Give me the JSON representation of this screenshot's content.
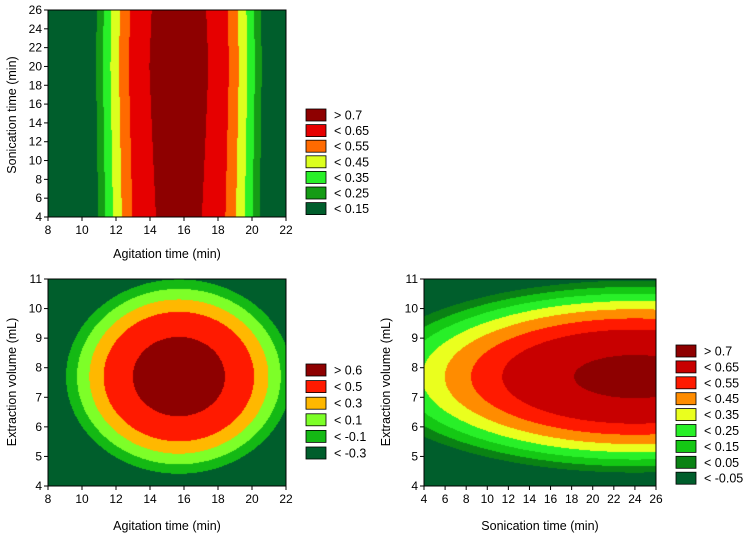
{
  "chart_data": [
    {
      "type": "contour",
      "xlabel": "Agitation time (min)",
      "ylabel": "Sonication time (min)",
      "xlim": [
        8,
        22
      ],
      "ylim": [
        4,
        26
      ],
      "xticks": [
        8,
        10,
        12,
        14,
        16,
        18,
        20,
        22
      ],
      "yticks": [
        4,
        6,
        8,
        10,
        12,
        14,
        16,
        18,
        20,
        22,
        24,
        26
      ],
      "surface": {
        "form": "x_quadratic_y_linear",
        "peak": 0.78,
        "x_center": 15.7,
        "x_coef": 0.0265,
        "y_ref": 20,
        "y_coef": 0.002
      },
      "legend": [
        {
          "label": "> 0.7",
          "color": "#8e0000"
        },
        {
          "label": "< 0.65",
          "color": "#e60000"
        },
        {
          "label": "< 0.55",
          "color": "#ff6a00"
        },
        {
          "label": "< 0.45",
          "color": "#dcff1e"
        },
        {
          "label": "< 0.35",
          "color": "#28f028"
        },
        {
          "label": "< 0.25",
          "color": "#159b15"
        },
        {
          "label": "< 0.15",
          "color": "#005e2c"
        }
      ]
    },
    {
      "type": "contour",
      "xlabel": "Agitation time (min)",
      "ylabel": "Extraction volume (mL)",
      "xlim": [
        8,
        22
      ],
      "ylim": [
        4,
        11
      ],
      "xticks": [
        8,
        10,
        12,
        14,
        16,
        18,
        20,
        22
      ],
      "yticks": [
        4,
        5,
        6,
        7,
        8,
        9,
        10,
        11
      ],
      "surface": {
        "form": "elliptic",
        "peak": 0.78,
        "x_center": 15.7,
        "y_center": 7.7,
        "x_coef": 0.0245,
        "y_coef": 0.1
      },
      "legend": [
        {
          "label": "> 0.6",
          "color": "#8e0000"
        },
        {
          "label": "< 0.5",
          "color": "#ff1a00"
        },
        {
          "label": "< 0.3",
          "color": "#ffb800"
        },
        {
          "label": "< 0.1",
          "color": "#7dff28"
        },
        {
          "label": "< -0.1",
          "color": "#14b914"
        },
        {
          "label": "< -0.3",
          "color": "#005e2c"
        }
      ]
    },
    {
      "type": "contour",
      "xlabel": "Sonication time (min)",
      "ylabel": "Extraction volume (mL)",
      "xlim": [
        4,
        26
      ],
      "ylim": [
        4,
        11
      ],
      "xticks": [
        4,
        6,
        8,
        10,
        12,
        14,
        16,
        18,
        20,
        22,
        24,
        26
      ],
      "yticks": [
        4,
        5,
        6,
        7,
        8,
        9,
        10,
        11
      ],
      "surface": {
        "form": "y_quadratic_x_quadratic",
        "peak": 0.74,
        "y_center": 7.7,
        "y_coef": 0.075,
        "x_center": 24,
        "x_coef": 0.0012
      },
      "legend": [
        {
          "label": "> 0.7",
          "color": "#8e0000"
        },
        {
          "label": "< 0.65",
          "color": "#c80000"
        },
        {
          "label": "< 0.55",
          "color": "#ff1a00"
        },
        {
          "label": "< 0.45",
          "color": "#ff8c00"
        },
        {
          "label": "< 0.35",
          "color": "#eaff1e"
        },
        {
          "label": "< 0.25",
          "color": "#28f028"
        },
        {
          "label": "< 0.15",
          "color": "#14c814"
        },
        {
          "label": "< 0.05",
          "color": "#0a8214"
        },
        {
          "label": "< -0.05",
          "color": "#005e2c"
        }
      ]
    }
  ]
}
